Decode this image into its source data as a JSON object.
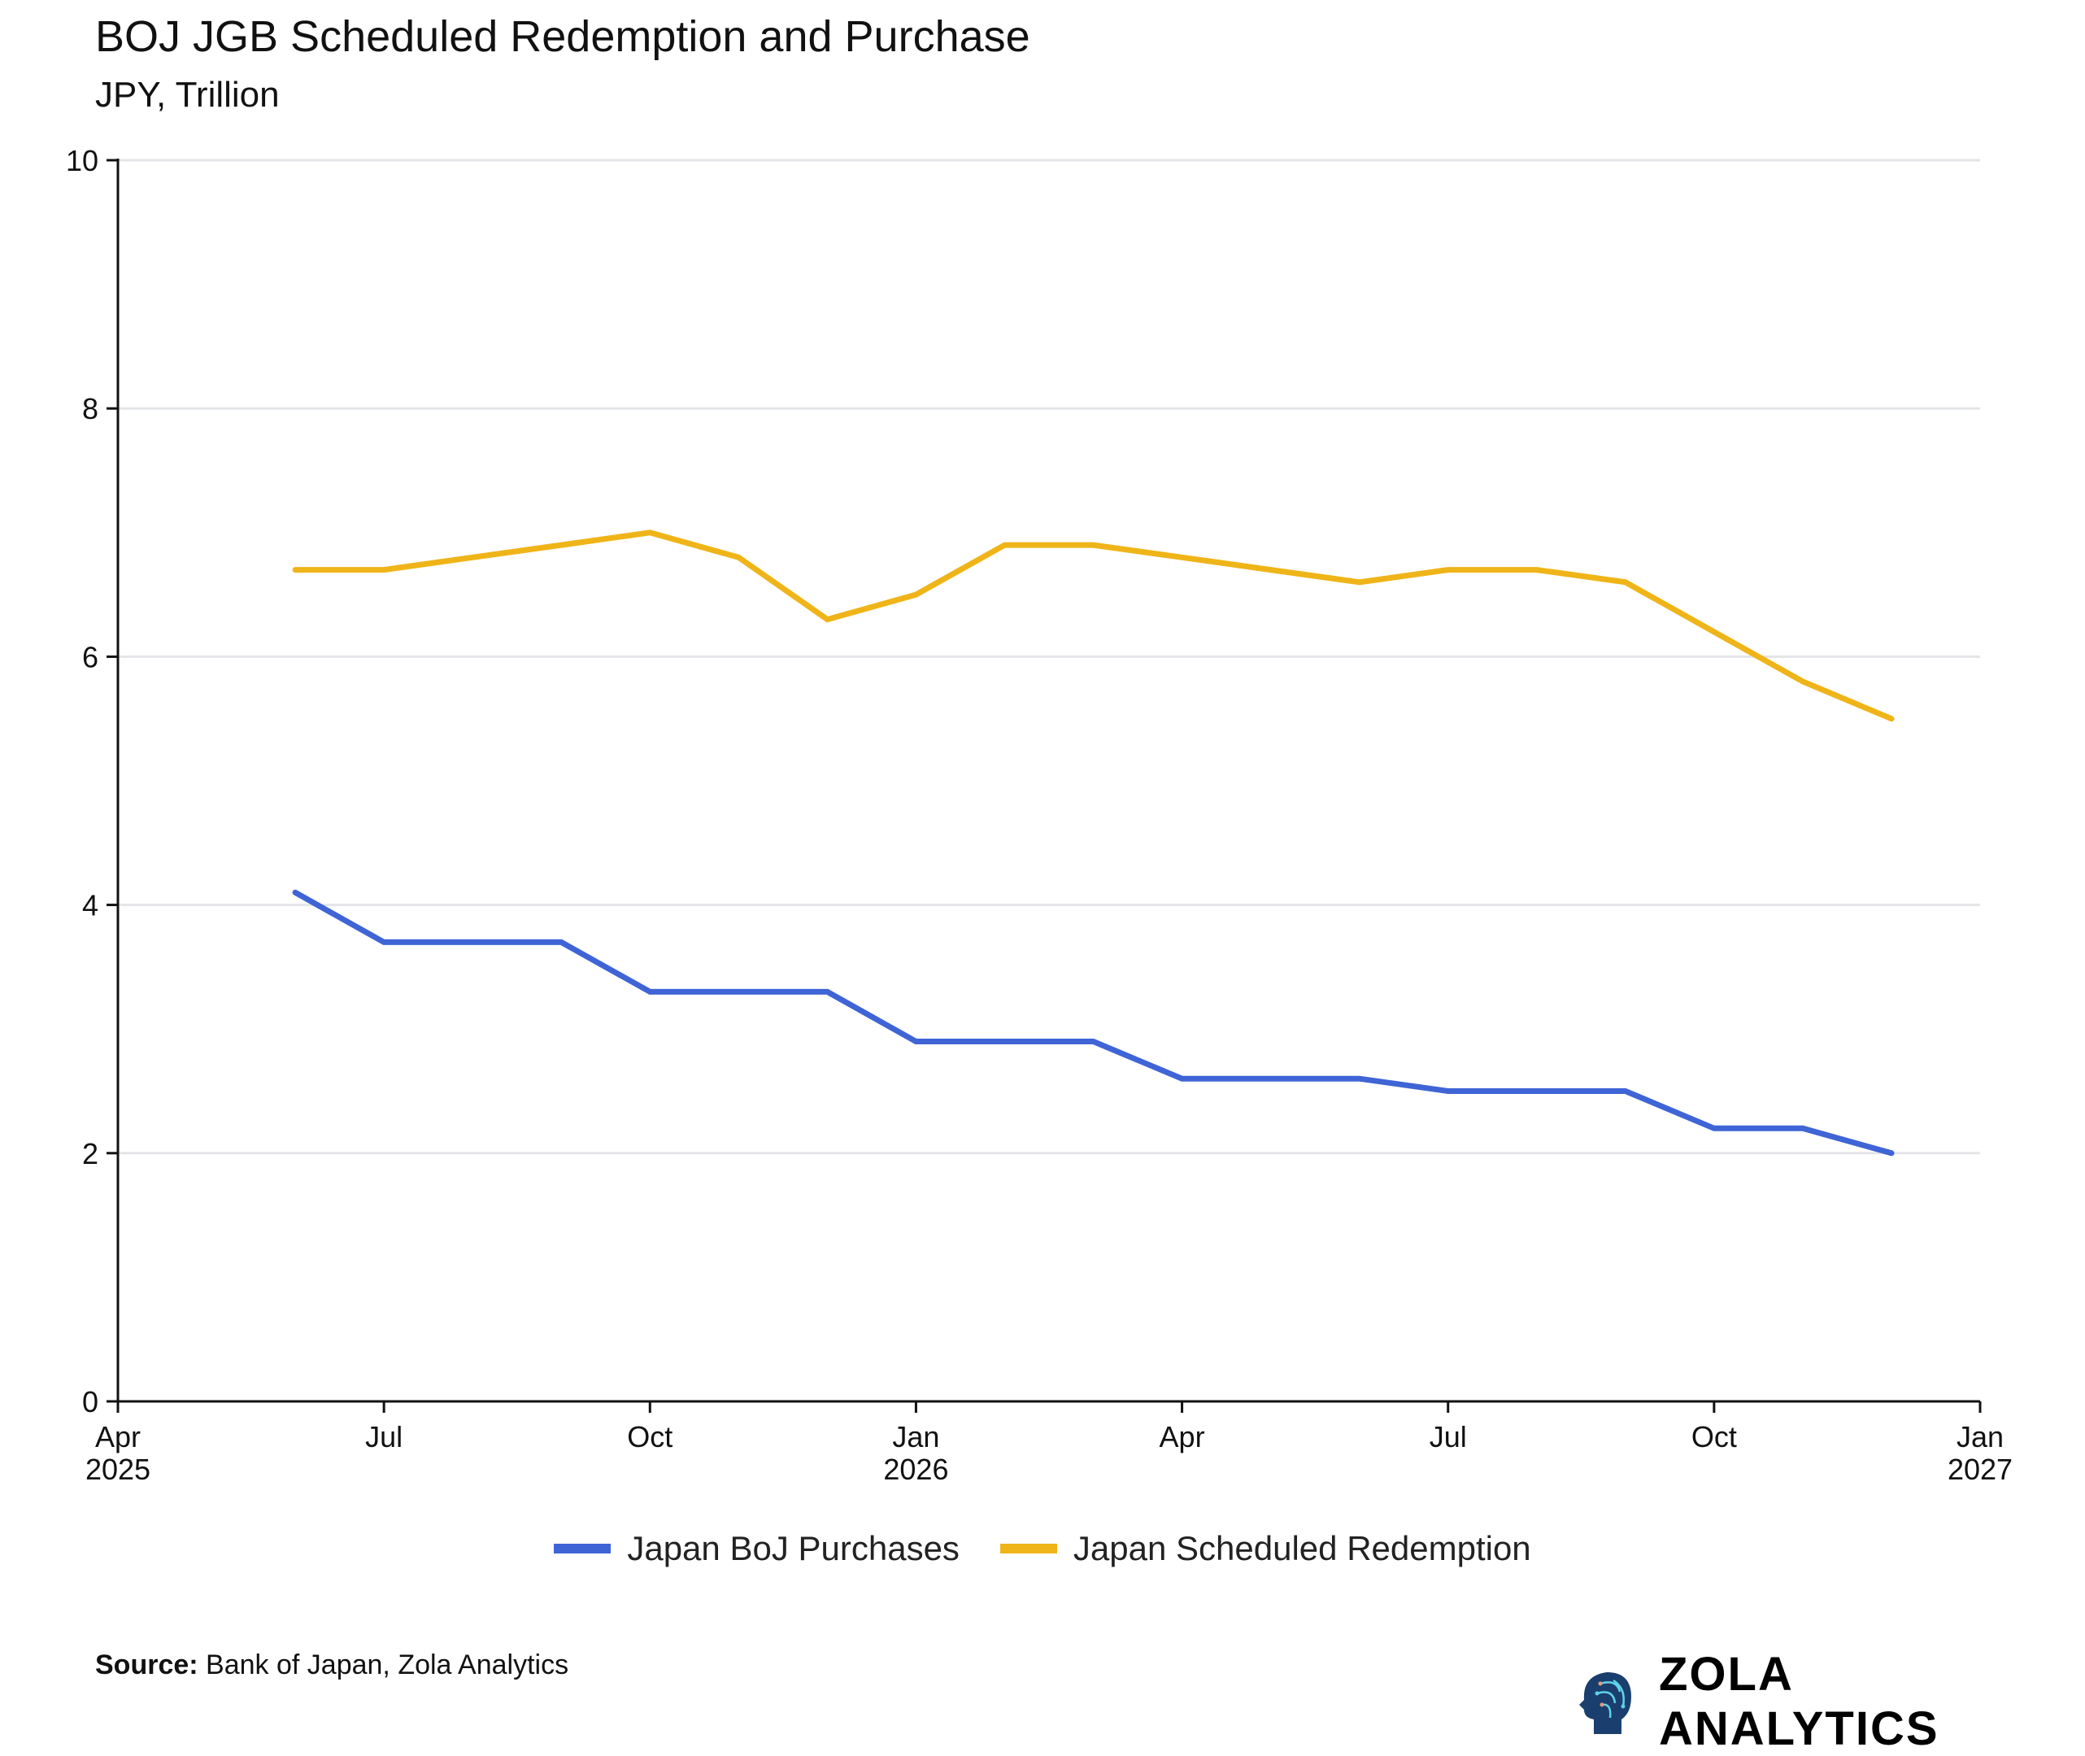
{
  "chart_data": {
    "type": "line",
    "title": "BOJ JGB Scheduled Redemption and Purchase",
    "subtitle": "JPY, Trillion",
    "ylim": [
      0,
      10
    ],
    "yticks": [
      0,
      2,
      4,
      6,
      8,
      10
    ],
    "xlim": [
      "2025-04",
      "2027-01"
    ],
    "xticks": [
      {
        "date": "2025-04",
        "label": "Apr",
        "year": "2025"
      },
      {
        "date": "2025-07",
        "label": "Jul",
        "year": ""
      },
      {
        "date": "2025-10",
        "label": "Oct",
        "year": ""
      },
      {
        "date": "2026-01",
        "label": "Jan",
        "year": "2026"
      },
      {
        "date": "2026-04",
        "label": "Apr",
        "year": ""
      },
      {
        "date": "2026-07",
        "label": "Jul",
        "year": ""
      },
      {
        "date": "2026-10",
        "label": "Oct",
        "year": ""
      },
      {
        "date": "2027-01",
        "label": "Jan",
        "year": "2027"
      }
    ],
    "grid": "horizontal",
    "legend_placement": "bottom",
    "x": [
      "2025-06",
      "2025-07",
      "2025-08",
      "2025-09",
      "2025-10",
      "2025-11",
      "2025-12",
      "2026-01",
      "2026-02",
      "2026-03",
      "2026-04",
      "2026-05",
      "2026-06",
      "2026-07",
      "2026-08",
      "2026-09",
      "2026-10",
      "2026-11",
      "2026-12"
    ],
    "series": [
      {
        "name": "Japan BoJ Purchases",
        "color": "#3f64d6",
        "values": [
          4.1,
          3.7,
          3.7,
          3.7,
          3.3,
          3.3,
          3.3,
          2.9,
          2.9,
          2.9,
          2.6,
          2.6,
          2.6,
          2.5,
          2.5,
          2.5,
          2.2,
          2.2,
          2.0
        ]
      },
      {
        "name": "Japan Scheduled Redemption",
        "color": "#efb418",
        "values": [
          6.7,
          6.7,
          6.8,
          6.9,
          7.0,
          6.8,
          6.3,
          6.5,
          6.9,
          6.9,
          6.8,
          6.7,
          6.6,
          6.7,
          6.7,
          6.6,
          6.2,
          5.8,
          5.5
        ]
      }
    ]
  },
  "source": {
    "label": "Source:",
    "text": " Bank of Japan, Zola Analytics"
  },
  "logo": {
    "text": "ZOLA ANALYTICS"
  }
}
